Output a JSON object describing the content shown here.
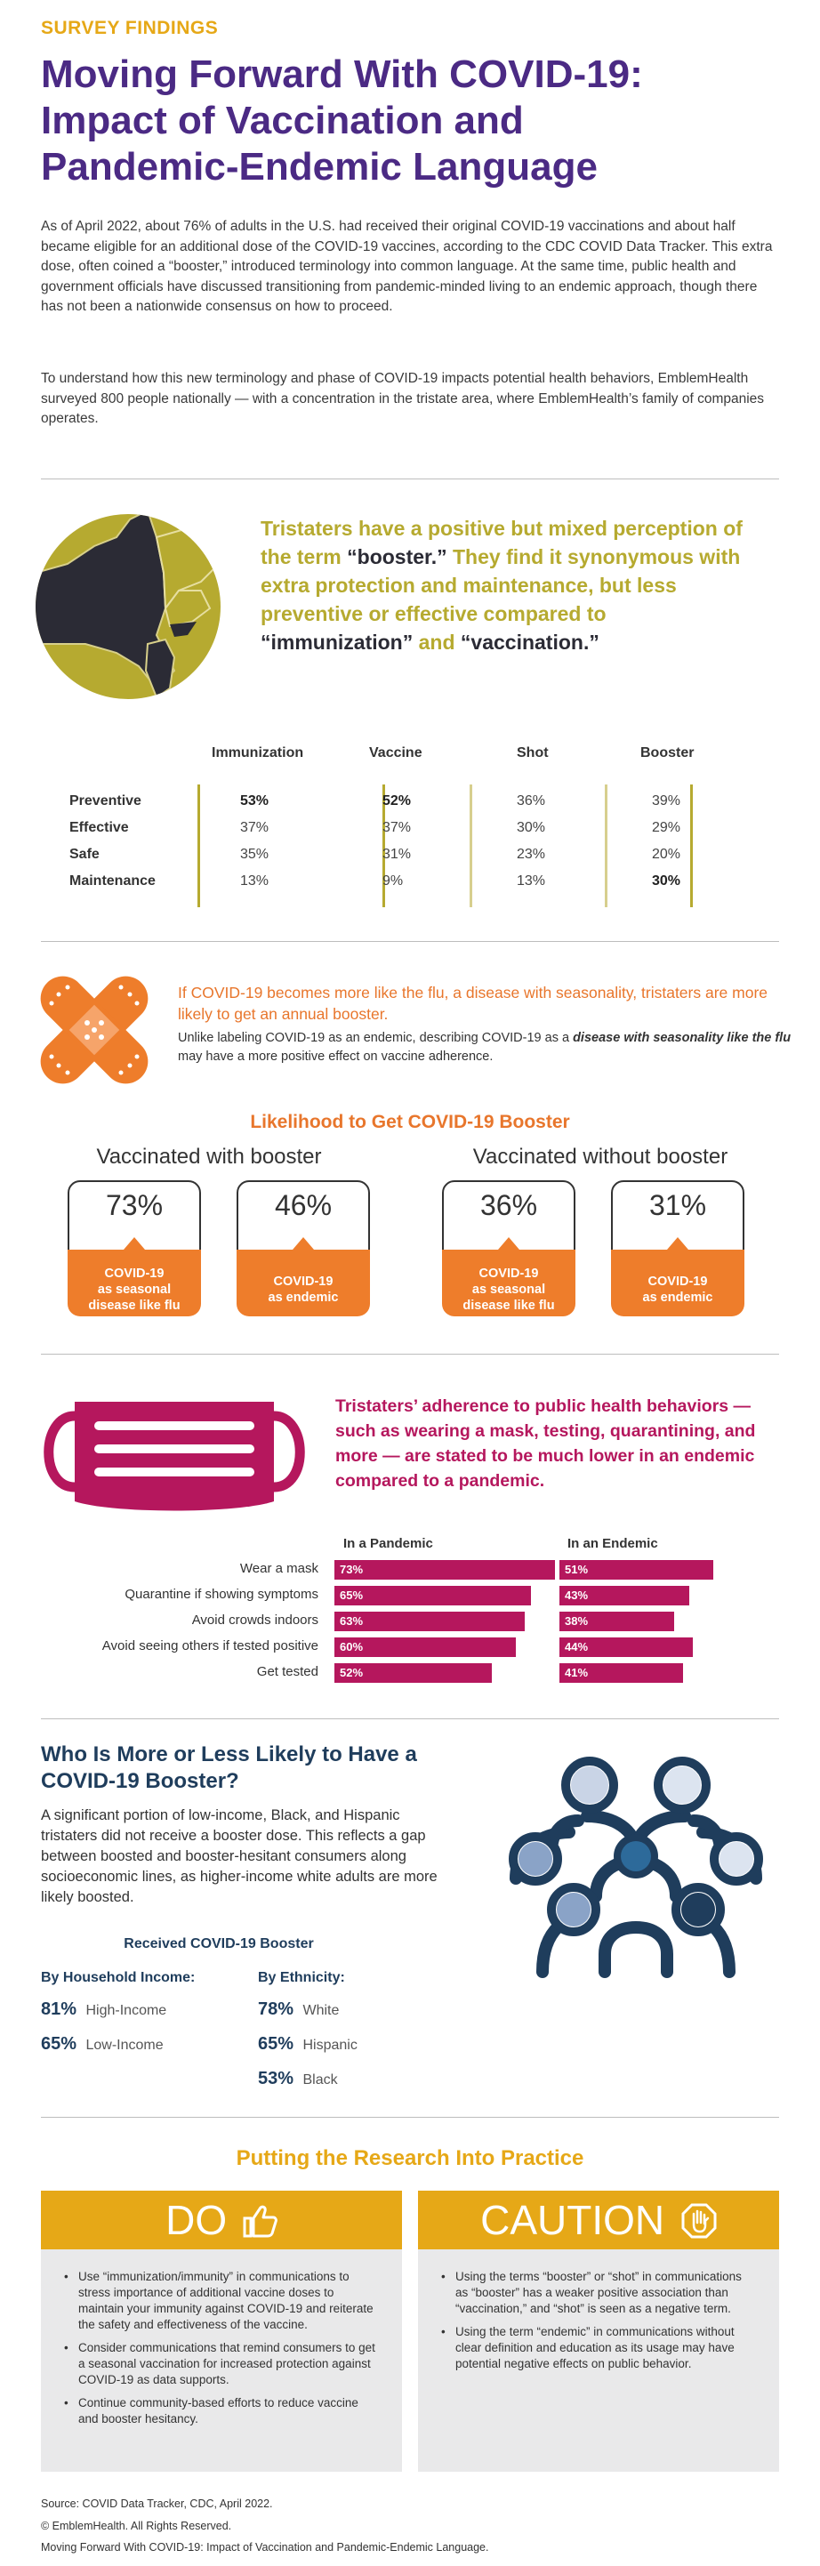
{
  "header": {
    "eyebrow": "SURVEY FINDINGS",
    "title_line1": "Moving Forward With COVID-19:",
    "title_line2": "Impact of Vaccination and",
    "title_line3": "Pandemic-Endemic Language",
    "intro_p1": "As of April 2022, about 76% of adults in the U.S. had received their original COVID-19 vaccinations and about half became eligible for an additional dose of the COVID-19 vaccines, according to the CDC COVID Data Tracker. This extra dose, often coined a “booster,” introduced terminology into common language. At the same time, public health and government officials have discussed transitioning from pandemic-minded living to an endemic approach, though there has not been a nationwide consensus on how to proceed.",
    "intro_p2": "To understand how this new terminology and phase of COVID-19 impacts potential health behaviors, EmblemHealth surveyed 800 people nationally — with a concentration in the tristate area, where EmblemHealth’s family of companies operates."
  },
  "section1": {
    "text_a": "Tristaters have a positive but mixed perception of the term ",
    "text_b": "“booster.”",
    "text_c": " They find it synonymous with extra protection and maintenance, but less preventive or effective compared to ",
    "text_d": "“immunization”",
    "text_e": " and ",
    "text_f": "“vaccination.”",
    "columns": [
      "Immunization",
      "Vaccine",
      "Shot",
      "Booster"
    ],
    "rows": [
      {
        "label": "Preventive",
        "values": [
          "53%",
          "52%",
          "36%",
          "39%"
        ]
      },
      {
        "label": "Effective",
        "values": [
          "37%",
          "37%",
          "30%",
          "29%"
        ]
      },
      {
        "label": "Safe",
        "values": [
          "35%",
          "31%",
          "23%",
          "20%"
        ]
      },
      {
        "label": "Maintenance",
        "values": [
          "13%",
          "9%",
          "13%",
          "30%"
        ]
      }
    ],
    "colors": {
      "accent": "#b6aa30",
      "dark": "#2b2b35"
    }
  },
  "section2": {
    "headline": "If COVID-19 becomes more like the flu, a disease with seasonality, tristaters are more likely to get an annual booster.",
    "sub_a": "Unlike labeling COVID-19 as an endemic, describing COVID-19 as a ",
    "sub_b": "disease with seasonality like the flu",
    "sub_c": " may have a more positive effect on vaccine adherence.",
    "title": "Likelihood to Get COVID-19 Booster",
    "group1": "Vaccinated with booster",
    "group2": "Vaccinated without booster",
    "cards": [
      {
        "value": "73%",
        "label_1": "COVID-19",
        "label_2": "as seasonal",
        "label_3": "disease like flu"
      },
      {
        "value": "46%",
        "label_1": "COVID-19",
        "label_2": "as endemic",
        "label_3": ""
      },
      {
        "value": "36%",
        "label_1": "COVID-19",
        "label_2": "as seasonal",
        "label_3": "disease like flu"
      },
      {
        "value": "31%",
        "label_1": "COVID-19",
        "label_2": "as endemic",
        "label_3": ""
      }
    ],
    "color": "#ee7d2b"
  },
  "section3": {
    "text": "Tristaters’ adherence to public health behaviors — such as wearing a mask, testing, quarantining, and more — are stated to be much lower in an endemic compared to a pandemic.",
    "col1": "In a Pandemic",
    "col2": "In an Endemic",
    "rows": [
      {
        "label": "Wear a mask",
        "pandemic": 73,
        "endemic": 51,
        "pandemic_text": "73%",
        "endemic_text": "51%"
      },
      {
        "label": "Quarantine if showing symptoms",
        "pandemic": 65,
        "endemic": 43,
        "pandemic_text": "65%",
        "endemic_text": "43%"
      },
      {
        "label": "Avoid crowds indoors",
        "pandemic": 63,
        "endemic": 38,
        "pandemic_text": "63%",
        "endemic_text": "38%"
      },
      {
        "label": "Avoid seeing others if tested positive",
        "pandemic": 60,
        "endemic": 44,
        "pandemic_text": "60%",
        "endemic_text": "44%"
      },
      {
        "label": "Get tested",
        "pandemic": 52,
        "endemic": 41,
        "pandemic_text": "52%",
        "endemic_text": "41%"
      }
    ],
    "color": "#b5175d"
  },
  "section4": {
    "title": "Who Is More or Less Likely to Have a COVID-19 Booster?",
    "body": "A significant portion of low-income, Black, and Hispanic tristaters did not receive a booster dose. This reflects a gap between boosted and booster-hesitant consumers along socioeconomic lines, as higher-income white adults are more likely boosted.",
    "subtitle": "Received COVID-19 Booster",
    "income_head": "By Household Income:",
    "ethnicity_head": "By Ethnicity:",
    "income": [
      {
        "value": "81%",
        "label": "High-Income"
      },
      {
        "value": "65%",
        "label": "Low-Income"
      }
    ],
    "ethnicity": [
      {
        "value": "78%",
        "label": "White"
      },
      {
        "value": "65%",
        "label": "Hispanic"
      },
      {
        "value": "53%",
        "label": "Black"
      }
    ]
  },
  "section5": {
    "title": "Putting the Research Into Practice",
    "do_label": "DO",
    "caution_label": "CAUTION",
    "do_items": [
      "Use “immunization/immunity” in communications to stress importance of additional vaccine doses to maintain your immunity against COVID-19 and reiterate the safety and effectiveness of the vaccine.",
      "Consider communications that remind consumers to get a seasonal vaccination for increased protection against COVID-19 as data supports.",
      "Continue community-based efforts to reduce vaccine and booster hesitancy."
    ],
    "caution_items": [
      "Using the terms “booster” or “shot” in communications as “booster” has a weaker positive association than “vaccination,” and “shot” is seen as a negative term.",
      "Using the term “endemic” in communications without clear definition and education as its usage may have potential negative effects on public behavior."
    ]
  },
  "footer": {
    "source": "Source: COVID Data Tracker, CDC, April 2022.",
    "copyright": "© EmblemHealth. All Rights Reserved.",
    "title": "Moving Forward With COVID-19: Impact of Vaccination and Pandemic-Endemic Language."
  }
}
